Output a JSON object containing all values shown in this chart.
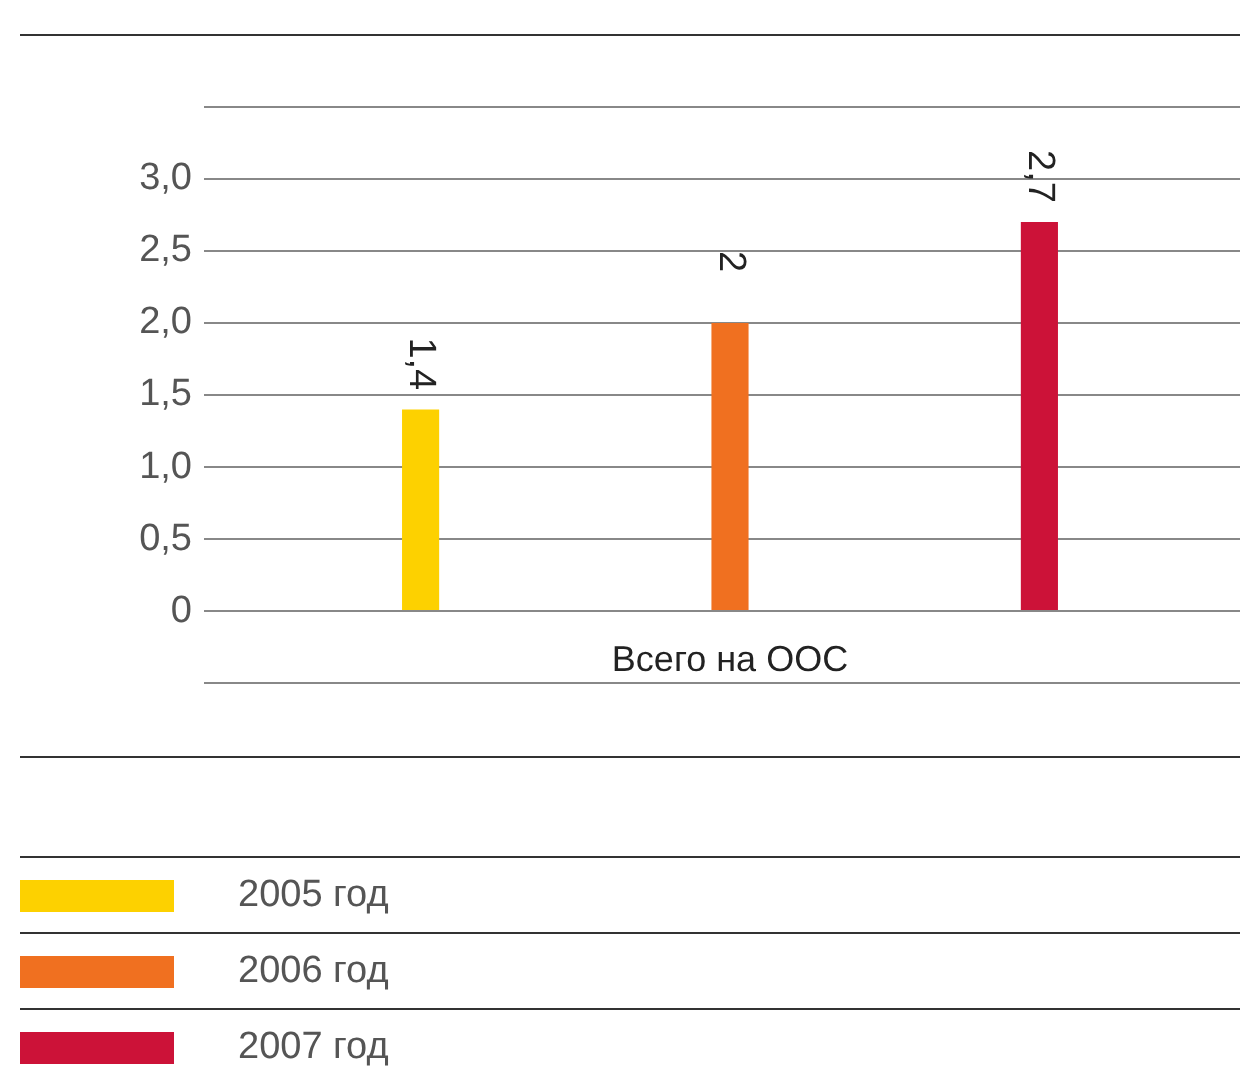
{
  "chart_data": {
    "type": "bar",
    "categories": [
      "Всего на ООС"
    ],
    "series": [
      {
        "name": "2005 год",
        "color": "#fdd100",
        "values": [
          1.4
        ],
        "value_labels": [
          "1,4"
        ]
      },
      {
        "name": "2006 год",
        "color": "#f07020",
        "values": [
          2
        ],
        "value_labels": [
          "2"
        ]
      },
      {
        "name": "2007 год",
        "color": "#cc1238",
        "values": [
          2.7
        ],
        "value_labels": [
          "2,7"
        ]
      }
    ],
    "ylim": [
      -1,
      4
    ],
    "yticks": [
      {
        "value": -0.5,
        "label": null
      },
      {
        "value": 0,
        "label": "0"
      },
      {
        "value": 0.5,
        "label": "0,5"
      },
      {
        "value": 1,
        "label": "1,0"
      },
      {
        "value": 1.5,
        "label": "1,5"
      },
      {
        "value": 2,
        "label": "2,0"
      },
      {
        "value": 2.5,
        "label": "2,5"
      },
      {
        "value": 3,
        "label": "3,0"
      },
      {
        "value": 3.5,
        "label": null
      }
    ],
    "grid": "y",
    "legend": "bottom"
  }
}
